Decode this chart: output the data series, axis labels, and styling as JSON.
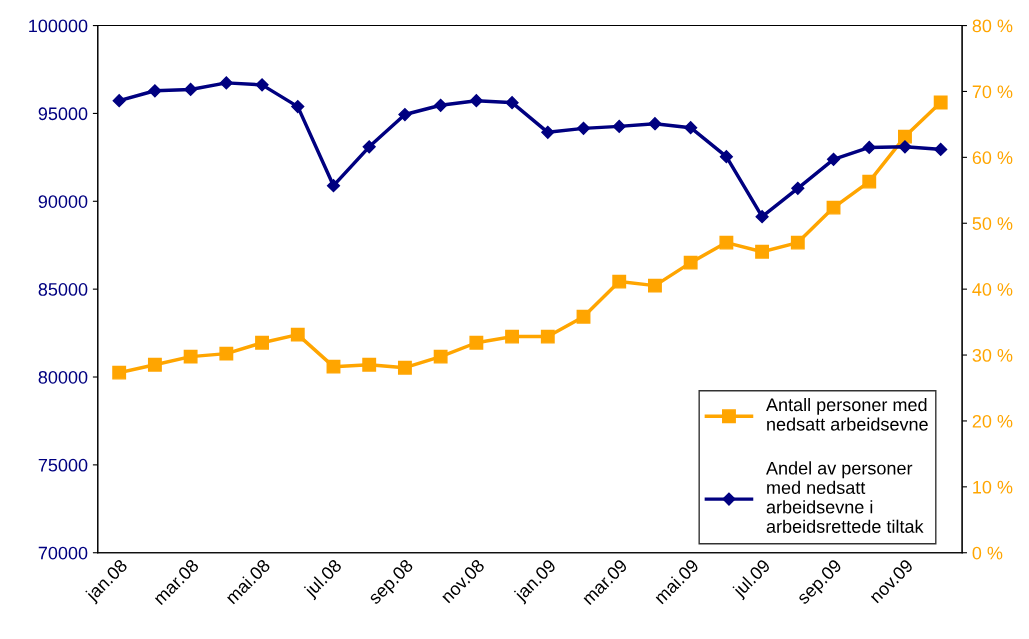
{
  "chart_data": {
    "type": "line",
    "categories": [
      "jan.08",
      null,
      "mar.08",
      null,
      "mai.08",
      null,
      "jul.08",
      null,
      "sep.08",
      null,
      "nov.08",
      null,
      "jan.09",
      null,
      "mar.09",
      null,
      "mai.09",
      null,
      "jul.09",
      null,
      "sep.09",
      null,
      "nov.09",
      null
    ],
    "series": [
      {
        "name": "Antall personer med\nnedsatt arbeidsevne",
        "color": "#ffa500",
        "marker": "square",
        "values": [
          80250,
          80700,
          81160,
          81330,
          81950,
          82410,
          80590,
          80700,
          80530,
          81160,
          81950,
          82300,
          82300,
          83430,
          85430,
          85200,
          86510,
          87650,
          87130,
          87650,
          89640,
          91120,
          93680,
          95620
        ]
      },
      {
        "name": "Andel av personer\nmed nedsatt\narbeidsevne i\narbeidsrettede tiltak",
        "color": "#000080",
        "marker": "diamond",
        "axis": "y2",
        "values": [
          68.6,
          70.1,
          70.3,
          71.3,
          71.0,
          67.7,
          55.7,
          61.6,
          66.5,
          67.9,
          68.6,
          68.3,
          63.8,
          64.4,
          64.7,
          65.1,
          64.5,
          60.1,
          51.0,
          55.3,
          59.7,
          61.5,
          61.6,
          61.2
        ]
      }
    ],
    "ylim": [
      70000,
      100000
    ],
    "yticks": [
      70000,
      75000,
      80000,
      85000,
      90000,
      95000,
      100000
    ],
    "y2lim": [
      0,
      80
    ],
    "y2ticks": [
      {
        "value": 0,
        "label": "0 %"
      },
      {
        "value": 10,
        "label": "10 %"
      },
      {
        "value": 20,
        "label": "20 %"
      },
      {
        "value": 30,
        "label": "30 %"
      },
      {
        "value": 40,
        "label": "40 %"
      },
      {
        "value": 50,
        "label": "50 %"
      },
      {
        "value": 60,
        "label": "60 %"
      },
      {
        "value": 70,
        "label": "70 %"
      },
      {
        "value": 80,
        "label": "80 %"
      }
    ],
    "legend": "lower right",
    "grid": false
  }
}
